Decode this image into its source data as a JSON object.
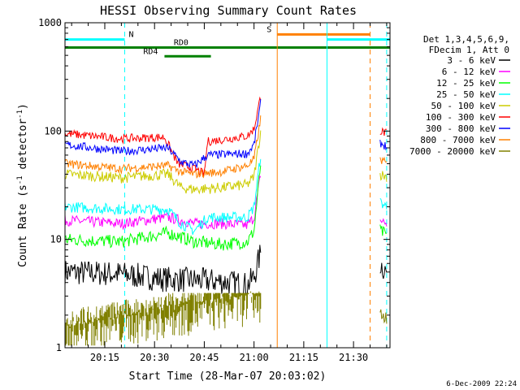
{
  "chart_data": {
    "type": "line",
    "title": "HESSI Observing Summary Count Rates",
    "xlabel": "Start Time (28-Mar-07 20:03:02)",
    "ylabel_main": "Count Rate (s",
    "ylabel_sup1": "-1",
    "ylabel_mid": " detector",
    "ylabel_sup2": "-1",
    "ylabel_end": ")",
    "y_scale": "log",
    "ylim": [
      1,
      1000
    ],
    "xlim": [
      "20:03",
      "21:41"
    ],
    "x_ticks": [
      {
        "t": "20:15",
        "label": "20:15"
      },
      {
        "t": "20:30",
        "label": "20:30"
      },
      {
        "t": "20:45",
        "label": "20:45"
      },
      {
        "t": "21:00",
        "label": "21:00"
      },
      {
        "t": "21:15",
        "label": "21:15"
      },
      {
        "t": "21:30",
        "label": "21:30"
      }
    ],
    "y_ticks": [
      {
        "v": 1,
        "label": "1"
      },
      {
        "v": 10,
        "label": "10"
      },
      {
        "v": 100,
        "label": "100"
      },
      {
        "v": 1000,
        "label": "1000"
      }
    ],
    "legend_header": [
      "Det 1,3,4,5,6,9,",
      "FDecim 1, Att 0"
    ],
    "legend_placement": "right",
    "series": [
      {
        "name": "3 - 6 keV",
        "color": "#000000",
        "noise": 0.12,
        "points": [
          [
            "20:03",
            5.0
          ],
          [
            "20:20",
            4.8
          ],
          [
            "20:33",
            4.3
          ],
          [
            "20:42",
            4.2
          ],
          [
            "20:50",
            4.1
          ],
          [
            "20:58",
            3.8
          ],
          [
            "21:00",
            4.5
          ],
          [
            "21:02",
            7.5
          ]
        ],
        "tail": [
          [
            "21:38",
            6.0
          ],
          [
            "21:40",
            5.0
          ]
        ]
      },
      {
        "name": "6 - 12 keV",
        "color": "#ff00ff",
        "noise": 0.05,
        "points": [
          [
            "20:03",
            15
          ],
          [
            "20:20",
            14
          ],
          [
            "20:34",
            16
          ],
          [
            "20:38",
            15
          ],
          [
            "20:42",
            14
          ],
          [
            "20:50",
            14
          ],
          [
            "20:58",
            13.5
          ],
          [
            "21:00",
            16
          ],
          [
            "21:02",
            40
          ]
        ],
        "tail": [
          [
            "21:38",
            15
          ],
          [
            "21:40",
            14
          ]
        ]
      },
      {
        "name": "12 - 25 keV",
        "color": "#00ff00",
        "noise": 0.06,
        "points": [
          [
            "20:03",
            10
          ],
          [
            "20:20",
            9.5
          ],
          [
            "20:34",
            11.5
          ],
          [
            "20:38",
            10.5
          ],
          [
            "20:42",
            9.5
          ],
          [
            "20:50",
            9
          ],
          [
            "20:58",
            9.5
          ],
          [
            "21:00",
            12
          ],
          [
            "21:02",
            50
          ]
        ],
        "tail": [
          [
            "21:38",
            12
          ],
          [
            "21:40",
            11
          ]
        ]
      },
      {
        "name": "25 - 50 keV",
        "color": "#00ffff",
        "noise": 0.05,
        "points": [
          [
            "20:03",
            20
          ],
          [
            "20:20",
            19
          ],
          [
            "20:34",
            19
          ],
          [
            "20:38",
            14
          ],
          [
            "20:42",
            12
          ],
          [
            "20:46",
            16
          ],
          [
            "20:58",
            16
          ],
          [
            "21:00",
            20
          ],
          [
            "21:02",
            60
          ]
        ],
        "tail": [
          [
            "21:38",
            22
          ],
          [
            "21:40",
            20
          ]
        ]
      },
      {
        "name": "50 - 100 keV",
        "color": "#cccc00",
        "noise": 0.05,
        "points": [
          [
            "20:03",
            40
          ],
          [
            "20:20",
            37
          ],
          [
            "20:34",
            40
          ],
          [
            "20:38",
            30
          ],
          [
            "20:42",
            29
          ],
          [
            "20:50",
            30
          ],
          [
            "20:58",
            32
          ],
          [
            "21:00",
            38
          ],
          [
            "21:02",
            100
          ]
        ],
        "tail": [
          [
            "21:38",
            40
          ],
          [
            "21:40",
            38
          ]
        ]
      },
      {
        "name": "100 - 300 keV",
        "color": "#ff0000",
        "noise": 0.04,
        "points": [
          [
            "20:03",
            95
          ],
          [
            "20:20",
            85
          ],
          [
            "20:33",
            88
          ],
          [
            "20:37",
            50
          ],
          [
            "20:42",
            45
          ],
          [
            "20:45",
            40
          ],
          [
            "20:46",
            80
          ],
          [
            "20:58",
            90
          ],
          [
            "21:00",
            105
          ],
          [
            "21:02",
            210
          ]
        ],
        "tail": [
          [
            "21:38",
            100
          ],
          [
            "21:40",
            95
          ]
        ]
      },
      {
        "name": "300 - 800 keV",
        "color": "#0000ff",
        "noise": 0.04,
        "points": [
          [
            "20:03",
            75
          ],
          [
            "20:20",
            65
          ],
          [
            "20:34",
            70
          ],
          [
            "20:38",
            52
          ],
          [
            "20:42",
            48
          ],
          [
            "20:46",
            60
          ],
          [
            "20:58",
            62
          ],
          [
            "21:00",
            75
          ],
          [
            "21:02",
            180
          ]
        ],
        "tail": [
          [
            "21:38",
            78
          ],
          [
            "21:40",
            72
          ]
        ]
      },
      {
        "name": "800 - 7000 keV",
        "color": "#ff8000",
        "noise": 0.04,
        "points": [
          [
            "20:03",
            50
          ],
          [
            "20:20",
            45
          ],
          [
            "20:34",
            48
          ],
          [
            "20:38",
            42
          ],
          [
            "20:42",
            40
          ],
          [
            "20:50",
            42
          ],
          [
            "20:58",
            48
          ],
          [
            "21:00",
            55
          ],
          [
            "21:02",
            130
          ]
        ],
        "tail": [
          [
            "21:38",
            55
          ],
          [
            "21:40",
            50
          ]
        ]
      },
      {
        "name": "7000 - 20000 keV",
        "color": "#808000",
        "noise": 0,
        "points": [
          [
            "20:03",
            1.5
          ],
          [
            "21:02",
            3.0
          ]
        ],
        "tail": [
          [
            "21:38",
            2.0
          ],
          [
            "21:40",
            2.0
          ]
        ]
      }
    ],
    "vlines": [
      {
        "t": "20:03",
        "color": "#00ffff",
        "style": "solid"
      },
      {
        "t": "20:21",
        "color": "#00ffff",
        "style": "dashed"
      },
      {
        "t": "21:07",
        "color": "#ff8000",
        "style": "solid"
      },
      {
        "t": "21:22",
        "color": "#00ffff",
        "style": "solid"
      },
      {
        "t": "21:35",
        "color": "#ff8000",
        "style": "dashed"
      },
      {
        "t": "21:40",
        "color": "#00ffff",
        "style": "dashed"
      }
    ],
    "flags": [
      {
        "label": "N",
        "color": "#00ffff",
        "segments": [
          [
            "20:03",
            "20:21"
          ],
          [
            "21:22",
            "21:41"
          ]
        ],
        "label_at": "20:21",
        "value": 700
      },
      {
        "label": "S",
        "color": "#ff8000",
        "segments": [
          [
            "21:07",
            "21:35"
          ]
        ],
        "label_at": "21:07",
        "value": 780
      },
      {
        "label": "RD0",
        "color": "#008000",
        "segments": [
          [
            "20:03",
            "21:41"
          ]
        ],
        "label_at": "20:38",
        "value": 590
      },
      {
        "label": "RD4",
        "color": "#008000",
        "segments": [
          [
            "20:33",
            "20:47"
          ]
        ],
        "label_at": "20:33",
        "value": 490
      }
    ]
  },
  "timestamp": "6-Dec-2009 22:24"
}
